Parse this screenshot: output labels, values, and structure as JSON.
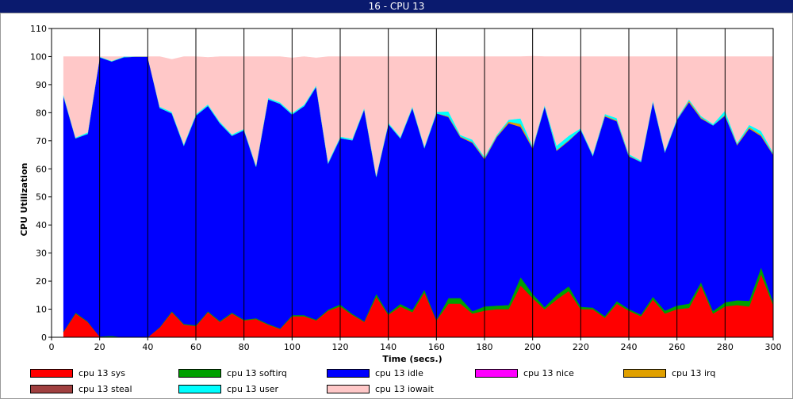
{
  "window": {
    "title": "16 - CPU 13"
  },
  "chart_data": {
    "type": "area",
    "stacked": true,
    "title": "16 - CPU 13",
    "xlabel": "Time (secs.)",
    "ylabel": "CPU Utilization",
    "xlim": [
      0,
      300
    ],
    "ylim": [
      0,
      110
    ],
    "xticks": [
      0,
      20,
      40,
      60,
      80,
      100,
      120,
      140,
      160,
      180,
      200,
      220,
      240,
      260,
      280,
      300
    ],
    "yticks": [
      0,
      10,
      20,
      30,
      40,
      50,
      60,
      70,
      80,
      90,
      100,
      110
    ],
    "grid": "vertical",
    "legend_position": "bottom",
    "x": [
      5,
      10,
      15,
      20,
      25,
      30,
      35,
      40,
      45,
      50,
      55,
      60,
      65,
      70,
      75,
      80,
      85,
      90,
      95,
      100,
      105,
      110,
      115,
      120,
      125,
      130,
      135,
      140,
      145,
      150,
      155,
      160,
      165,
      170,
      175,
      180,
      185,
      190,
      195,
      200,
      205,
      210,
      215,
      220,
      225,
      230,
      235,
      240,
      245,
      250,
      255,
      260,
      265,
      270,
      275,
      280,
      285,
      290,
      295,
      300
    ],
    "series": [
      {
        "name": "cpu 13 sys",
        "color": "#ff0000",
        "values": [
          2,
          8.5,
          5.5,
          0.3,
          0,
          0,
          0,
          0,
          3.5,
          9,
          4.5,
          4,
          9,
          5.5,
          8.5,
          6,
          6.5,
          4.5,
          3,
          7.5,
          7.5,
          6,
          9.5,
          11,
          8,
          5.5,
          14.5,
          8,
          11,
          9,
          16,
          6,
          12,
          12,
          8.5,
          9.5,
          10,
          10,
          18.5,
          14,
          10,
          13.5,
          16.5,
          10,
          10,
          7,
          12,
          9.5,
          7.5,
          13.5,
          8.5,
          10,
          10.5,
          18.5,
          8.5,
          11,
          11.5,
          11,
          22.5,
          11.5
        ]
      },
      {
        "name": "cpu 13 softirq",
        "color": "#00a000",
        "values": [
          0.2,
          0.3,
          0.2,
          0,
          0.5,
          0,
          0,
          0,
          0.2,
          0.3,
          0.3,
          0.3,
          0.3,
          0.3,
          0.3,
          0.3,
          0.3,
          0.3,
          0.2,
          0.4,
          0.4,
          0.3,
          0.4,
          0.7,
          0.4,
          0.3,
          1,
          0.5,
          0.9,
          0.8,
          1,
          0.3,
          2,
          2,
          0.8,
          1.5,
          1.3,
          1.5,
          3,
          1.5,
          0.8,
          1.6,
          1.7,
          0.9,
          0.6,
          0.6,
          0.9,
          0.6,
          0.6,
          1,
          1,
          1.3,
          1.5,
          1.2,
          0.9,
          1.5,
          1.7,
          2,
          2.5,
          1
        ]
      },
      {
        "name": "cpu 13 idle",
        "color": "#0000ff",
        "values": [
          83.6,
          62.1,
          66.8,
          99.5,
          97.8,
          99.8,
          100,
          100,
          78,
          70.5,
          63.5,
          74.7,
          73.2,
          70.5,
          63,
          67.5,
          54,
          80,
          80,
          71.5,
          74.5,
          83,
          52.1,
          59.3,
          61.8,
          75.5,
          41.7,
          67.5,
          59,
          72,
          50.5,
          73.5,
          64.5,
          57.3,
          60,
          52.5,
          60,
          64.8,
          53.5,
          51.8,
          71.5,
          51.4,
          51.8,
          63.1,
          54.1,
          71.1,
          64.1,
          54.4,
          54.4,
          69.5,
          56.5,
          66.2,
          71.8,
          58.3,
          66.1,
          66.5,
          55.3,
          61.4,
          46.7,
          52.5
        ]
      },
      {
        "name": "cpu 13 nice",
        "color": "#ff00ff",
        "values": [
          0,
          0,
          0,
          0,
          0,
          0,
          0,
          0,
          0,
          0,
          0,
          0,
          0,
          0,
          0,
          0,
          0,
          0,
          0,
          0,
          0,
          0,
          0,
          0,
          0,
          0,
          0,
          0,
          0,
          0,
          0,
          0,
          0,
          0,
          0,
          0,
          0,
          0,
          0,
          0,
          0,
          0,
          0,
          0,
          0,
          0,
          0,
          0,
          0,
          0,
          0,
          0,
          0,
          0,
          0,
          0,
          0,
          0,
          0,
          0
        ]
      },
      {
        "name": "cpu 13 irq",
        "color": "#e0a000",
        "values": [
          0,
          0,
          0,
          0,
          0,
          0,
          0,
          0,
          0,
          0,
          0,
          0,
          0,
          0,
          0,
          0,
          0,
          0,
          0,
          0,
          0,
          0,
          0,
          0,
          0,
          0,
          0,
          0,
          0,
          0,
          0,
          0,
          0.3,
          0.3,
          0.3,
          0.3,
          0.3,
          0.6,
          1,
          0.3,
          0,
          0.3,
          0.3,
          0,
          0,
          0.3,
          0.3,
          0.3,
          0,
          0,
          0,
          0,
          0.5,
          0.4,
          0,
          0.3,
          0.3,
          0.5,
          0.5,
          0.3
        ]
      },
      {
        "name": "cpu 13 steal",
        "color": "#a04040",
        "values": [
          0,
          0,
          0,
          0,
          0,
          0,
          0,
          0,
          0,
          0,
          0,
          0,
          0,
          0,
          0,
          0,
          0,
          0,
          0,
          0,
          0,
          0,
          0,
          0,
          0,
          0,
          0,
          0,
          0,
          0,
          0,
          0,
          0,
          0,
          0,
          0,
          0,
          0,
          0,
          0,
          0,
          0,
          0,
          0,
          0,
          0,
          0,
          0,
          0,
          0,
          0,
          0,
          0,
          0,
          0,
          0,
          0,
          0,
          0,
          0
        ]
      },
      {
        "name": "cpu 13 user",
        "color": "#00ffff",
        "values": [
          0.5,
          0.3,
          0.5,
          0.2,
          0.2,
          0.2,
          0,
          0,
          0.5,
          0.5,
          0.5,
          0.5,
          0.5,
          0.5,
          0.5,
          0.5,
          0.5,
          0.5,
          0.5,
          0.5,
          0.5,
          0.5,
          0.5,
          0.5,
          0.5,
          0.5,
          0.5,
          0.5,
          0.5,
          0.5,
          0.5,
          0.5,
          1.7,
          0.5,
          0.8,
          0.5,
          0.5,
          0.6,
          2,
          0.5,
          0.5,
          1.5,
          1.5,
          0.5,
          0.5,
          0.6,
          0.8,
          0.5,
          0.5,
          0.5,
          0.5,
          0.5,
          0.5,
          0.5,
          0.5,
          1.5,
          0.5,
          0.8,
          1.3,
          0.5
        ]
      },
      {
        "name": "cpu 13 iowait",
        "color": "#ffc8c8",
        "values": [
          13.7,
          28.8,
          27,
          0,
          1.5,
          0,
          0,
          0,
          17.8,
          18.7,
          31.2,
          20.5,
          16.7,
          23.2,
          27.7,
          25.7,
          38.7,
          14.7,
          16.3,
          19.6,
          17.1,
          9.7,
          37.5,
          28.5,
          29.3,
          18.2,
          42.3,
          23.5,
          28.6,
          17.7,
          32,
          19.7,
          19.5,
          27.9,
          29.6,
          35.7,
          27.9,
          22.5,
          22,
          32,
          17.2,
          31.7,
          28.2,
          25.5,
          34.8,
          20.4,
          21.9,
          34.7,
          37,
          15.5,
          33.5,
          22,
          15.2,
          21.1,
          24,
          19.2,
          30.7,
          24.3,
          26.5,
          34.2
        ]
      }
    ]
  }
}
